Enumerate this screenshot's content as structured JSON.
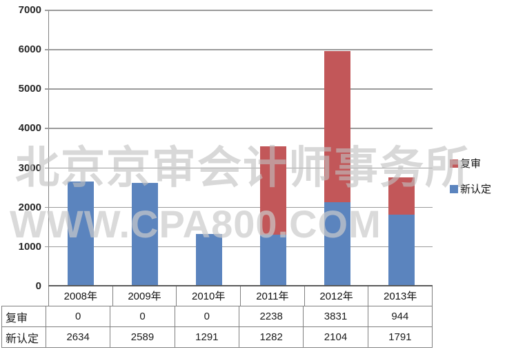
{
  "chart_data": {
    "type": "bar",
    "stacked": true,
    "title": "",
    "xlabel": "",
    "ylabel": "",
    "categories": [
      "2008年",
      "2009年",
      "2010年",
      "2011年",
      "2012年",
      "2013年"
    ],
    "series": [
      {
        "name": "新认定",
        "color": "#5B84BE",
        "values": [
          2634,
          2589,
          1291,
          1282,
          2104,
          1791
        ]
      },
      {
        "name": "复审",
        "color": "#C25759",
        "values": [
          0,
          0,
          0,
          2238,
          3831,
          944
        ]
      }
    ],
    "ylim": [
      0,
      7000
    ],
    "ytick_step": 1000,
    "yticks": [
      0,
      1000,
      2000,
      3000,
      4000,
      5000,
      6000,
      7000
    ],
    "grid": true,
    "legend_position": "right",
    "legend_order": [
      "复审",
      "新认定"
    ]
  },
  "table": {
    "corner_label": "",
    "columns": [
      "2008年",
      "2009年",
      "2010年",
      "2011年",
      "2012年",
      "2013年"
    ],
    "row_headers": [
      "复审",
      "新认定"
    ],
    "rows": [
      [
        "0",
        "0",
        "0",
        "2238",
        "3831",
        "944"
      ],
      [
        "2634",
        "2589",
        "1291",
        "1282",
        "2104",
        "1791"
      ]
    ]
  },
  "legend": {
    "items": [
      {
        "label": "复审",
        "color": "#C25759"
      },
      {
        "label": "新认定",
        "color": "#5B84BE"
      }
    ]
  },
  "watermark": {
    "line1": "北京京审会计师事务所",
    "line2": "WWW.CPA800.COM"
  },
  "colors": {
    "bar_blue": "#5B84BE",
    "bar_red": "#C25759",
    "gridline": "#9A9A9A",
    "axis": "#595959",
    "table_border": "#7F7F7F",
    "text": "#1A1A1A"
  }
}
